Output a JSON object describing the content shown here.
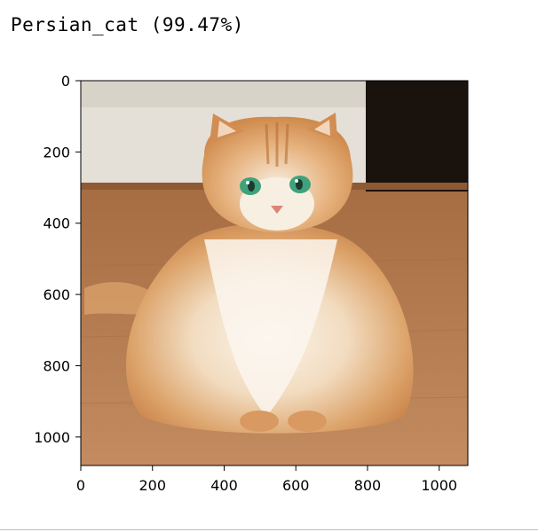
{
  "output": {
    "prediction_text": "Persian_cat (99.47%)"
  },
  "figure": {
    "image_subject": "cat-photo",
    "x_ticks": [
      "0",
      "200",
      "400",
      "600",
      "800",
      "1000"
    ],
    "y_ticks": [
      "0",
      "200",
      "400",
      "600",
      "800",
      "1000"
    ],
    "x_range": [
      0,
      1080
    ],
    "y_range": [
      0,
      1080
    ],
    "y_inverted": true
  },
  "colors": {
    "wall": "#e4e0d7",
    "floor": "#b07a4f",
    "fur_light": "#f6ebdb",
    "fur_orange": "#d9975a",
    "eyes": "#3fa27c"
  }
}
